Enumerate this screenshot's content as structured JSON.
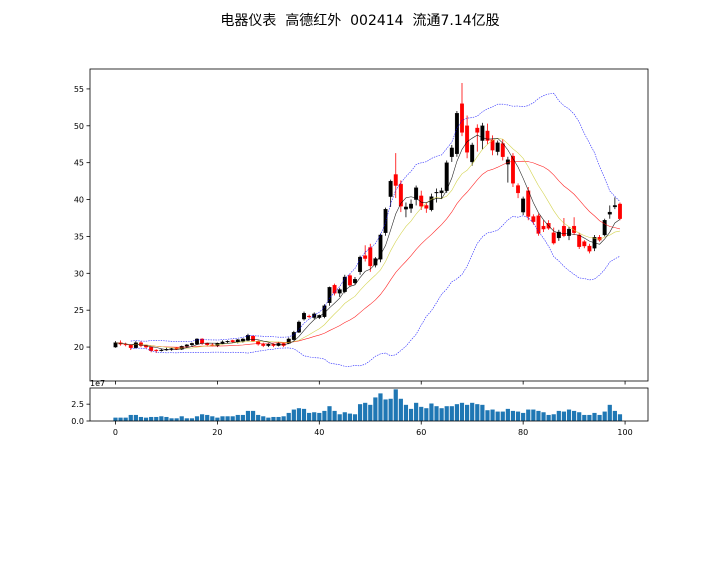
{
  "chart_data": [
    {
      "type": "candlestick",
      "title": "电器仪表  高德红外  002414  流通7.14亿股",
      "xlim": [
        -5,
        104.5
      ],
      "ylim": [
        15.4,
        57.7
      ],
      "x_ticks": [
        0,
        20,
        40,
        60,
        80,
        100
      ],
      "y_ticks": [
        20,
        25,
        30,
        35,
        40,
        45,
        50,
        55
      ],
      "grid": false,
      "colors": {
        "up": "#000000",
        "down": "#ff0000",
        "ma5": "#000000",
        "ma10": "#cccc33",
        "ma20": "#ff0000",
        "boll": "#0000ff"
      },
      "indicators": [
        "MA5",
        "MA10",
        "MA20",
        "BOLL(20,2) upper",
        "BOLL(20,2) lower"
      ],
      "ohlc": [
        [
          20.0,
          20.8,
          19.9,
          20.6
        ],
        [
          20.6,
          20.9,
          20.2,
          20.4
        ],
        [
          20.4,
          20.6,
          20.1,
          20.3
        ],
        [
          20.3,
          20.4,
          19.6,
          19.9
        ],
        [
          19.9,
          20.8,
          19.8,
          20.6
        ],
        [
          20.6,
          20.8,
          20.0,
          20.2
        ],
        [
          20.2,
          20.3,
          19.8,
          20.0
        ],
        [
          20.0,
          20.1,
          19.3,
          19.5
        ],
        [
          19.6,
          19.7,
          19.2,
          19.5
        ],
        [
          19.5,
          19.8,
          19.4,
          19.6
        ],
        [
          19.6,
          19.9,
          19.5,
          19.7
        ],
        [
          19.7,
          19.9,
          19.5,
          19.8
        ],
        [
          19.9,
          20.0,
          19.6,
          19.7
        ],
        [
          19.7,
          20.2,
          19.6,
          20.1
        ],
        [
          20.1,
          20.4,
          19.9,
          20.3
        ],
        [
          20.3,
          20.6,
          20.1,
          20.5
        ],
        [
          20.4,
          21.2,
          20.3,
          21.1
        ],
        [
          21.1,
          21.2,
          20.3,
          20.5
        ],
        [
          20.5,
          20.6,
          20.1,
          20.3
        ],
        [
          20.3,
          20.5,
          20.1,
          20.2
        ],
        [
          20.2,
          20.6,
          20.0,
          20.5
        ],
        [
          20.5,
          20.9,
          20.4,
          20.7
        ],
        [
          20.7,
          20.9,
          20.5,
          20.8
        ],
        [
          20.9,
          21.0,
          20.6,
          20.7
        ],
        [
          20.7,
          21.1,
          20.5,
          21.0
        ],
        [
          20.8,
          21.2,
          20.6,
          21.1
        ],
        [
          20.9,
          21.8,
          20.8,
          21.6
        ],
        [
          21.5,
          21.6,
          20.7,
          20.8
        ],
        [
          20.8,
          20.9,
          20.2,
          20.4
        ],
        [
          20.4,
          20.6,
          20.0,
          20.2
        ],
        [
          20.2,
          20.5,
          20.0,
          20.4
        ],
        [
          20.4,
          20.5,
          20.0,
          20.2
        ],
        [
          20.2,
          20.7,
          20.1,
          20.5
        ],
        [
          20.5,
          20.6,
          20.0,
          20.2
        ],
        [
          20.5,
          21.3,
          20.4,
          21.1
        ],
        [
          21.0,
          22.2,
          20.9,
          22.0
        ],
        [
          22.0,
          23.6,
          21.9,
          23.4
        ],
        [
          23.8,
          24.8,
          23.6,
          24.6
        ],
        [
          24.2,
          24.4,
          23.9,
          24.1
        ],
        [
          24.0,
          24.7,
          23.8,
          24.5
        ],
        [
          24.0,
          24.4,
          23.8,
          24.3
        ],
        [
          24.1,
          25.8,
          23.9,
          25.6
        ],
        [
          26.0,
          28.2,
          25.6,
          28.1
        ],
        [
          28.4,
          28.6,
          27.0,
          27.3
        ],
        [
          27.3,
          28.0,
          26.8,
          27.8
        ],
        [
          27.5,
          29.8,
          27.3,
          29.5
        ],
        [
          29.7,
          29.9,
          28.2,
          28.4
        ],
        [
          28.7,
          29.5,
          28.5,
          29.2
        ],
        [
          30.2,
          32.4,
          29.8,
          32.2
        ],
        [
          32.4,
          33.8,
          31.6,
          32.0
        ],
        [
          33.5,
          34.0,
          30.2,
          31.0
        ],
        [
          31.1,
          32.2,
          30.8,
          32.0
        ],
        [
          31.9,
          35.4,
          31.5,
          35.2
        ],
        [
          35.5,
          38.9,
          35.1,
          38.7
        ],
        [
          40.4,
          42.7,
          39.0,
          42.5
        ],
        [
          43.4,
          46.3,
          40.2,
          41.9
        ],
        [
          42.1,
          42.6,
          38.3,
          39.1
        ],
        [
          38.7,
          39.6,
          37.6,
          39.0
        ],
        [
          38.8,
          40.0,
          38.2,
          39.4
        ],
        [
          40.0,
          41.9,
          39.2,
          41.6
        ],
        [
          40.5,
          41.2,
          38.6,
          39.1
        ],
        [
          39.2,
          39.6,
          38.2,
          38.8
        ],
        [
          38.6,
          40.8,
          38.4,
          40.4
        ],
        [
          40.9,
          41.5,
          39.6,
          41.0
        ],
        [
          40.9,
          41.6,
          40.1,
          41.2
        ],
        [
          41.2,
          45.3,
          40.9,
          45.0
        ],
        [
          45.8,
          47.4,
          45.1,
          47.0
        ],
        [
          46.2,
          52.0,
          45.8,
          51.7
        ],
        [
          53.0,
          55.8,
          48.6,
          49.1
        ],
        [
          50.0,
          51.4,
          45.6,
          46.4
        ],
        [
          45.1,
          47.7,
          44.6,
          47.4
        ],
        [
          49.7,
          50.2,
          46.5,
          49.1
        ],
        [
          48.0,
          50.4,
          46.8,
          50.0
        ],
        [
          49.3,
          50.3,
          47.5,
          48.0
        ],
        [
          48.1,
          48.7,
          46.0,
          46.7
        ],
        [
          46.5,
          48.0,
          46.0,
          47.7
        ],
        [
          47.6,
          48.2,
          45.3,
          45.8
        ],
        [
          44.8,
          45.8,
          42.3,
          45.4
        ],
        [
          45.9,
          46.3,
          41.7,
          42.2
        ],
        [
          41.9,
          42.2,
          40.2,
          40.9
        ],
        [
          38.3,
          40.4,
          37.9,
          40.1
        ],
        [
          41.2,
          41.7,
          37.2,
          37.7
        ],
        [
          37.7,
          38.0,
          36.6,
          37.0
        ],
        [
          37.8,
          38.1,
          35.1,
          35.4
        ],
        [
          36.4,
          37.2,
          35.6,
          36.0
        ],
        [
          36.8,
          37.2,
          35.9,
          36.1
        ],
        [
          35.5,
          36.2,
          33.9,
          34.1
        ],
        [
          34.8,
          35.9,
          34.4,
          35.6
        ],
        [
          36.4,
          37.5,
          34.9,
          35.1
        ],
        [
          35.1,
          36.3,
          34.5,
          36.0
        ],
        [
          36.4,
          37.6,
          35.2,
          35.5
        ],
        [
          35.2,
          35.5,
          33.3,
          33.6
        ],
        [
          34.3,
          34.5,
          33.4,
          33.7
        ],
        [
          33.7,
          34.0,
          32.7,
          33.0
        ],
        [
          33.4,
          35.2,
          33.0,
          34.9
        ],
        [
          34.9,
          35.2,
          34.3,
          34.5
        ],
        [
          35.2,
          37.4,
          35.0,
          37.2
        ],
        [
          38.0,
          39.2,
          37.4,
          38.3
        ],
        [
          39.0,
          40.3,
          38.7,
          39.2
        ],
        [
          39.4,
          39.6,
          37.2,
          37.4
        ]
      ]
    },
    {
      "type": "bar",
      "ylabel_offset": "1e7",
      "ylim": [
        0,
        4.9
      ],
      "y_ticks": [
        0.0,
        2.5
      ],
      "y_tick_labels": [
        "0.0",
        "2.5"
      ],
      "x_ticks": [
        0,
        20,
        40,
        60,
        80,
        100
      ],
      "color": "#1f77b4",
      "values": [
        0.5,
        0.5,
        0.5,
        0.9,
        0.9,
        0.6,
        0.5,
        0.6,
        0.6,
        0.7,
        0.6,
        0.4,
        0.4,
        0.7,
        0.4,
        0.4,
        0.7,
        1.0,
        0.9,
        0.7,
        0.5,
        0.7,
        0.7,
        0.7,
        0.9,
        0.9,
        1.5,
        1.5,
        0.9,
        0.7,
        0.5,
        0.6,
        0.6,
        0.7,
        1.2,
        1.7,
        1.9,
        1.8,
        1.2,
        1.3,
        1.2,
        1.5,
        2.2,
        1.5,
        1.0,
        1.3,
        1.1,
        1.0,
        2.5,
        2.7,
        2.4,
        3.5,
        4.1,
        3.2,
        3.3,
        4.7,
        3.3,
        2.4,
        1.8,
        2.7,
        2.1,
        1.9,
        2.6,
        2.2,
        1.9,
        2.2,
        2.2,
        2.5,
        2.7,
        2.4,
        2.7,
        2.5,
        2.4,
        1.6,
        1.7,
        1.4,
        1.4,
        1.8,
        1.5,
        1.4,
        1.2,
        1.7,
        1.7,
        1.5,
        1.3,
        0.9,
        1.0,
        1.5,
        1.4,
        1.7,
        1.5,
        1.3,
        0.9,
        0.9,
        1.2,
        0.9,
        1.4,
        2.4,
        1.5,
        1.0
      ]
    }
  ]
}
